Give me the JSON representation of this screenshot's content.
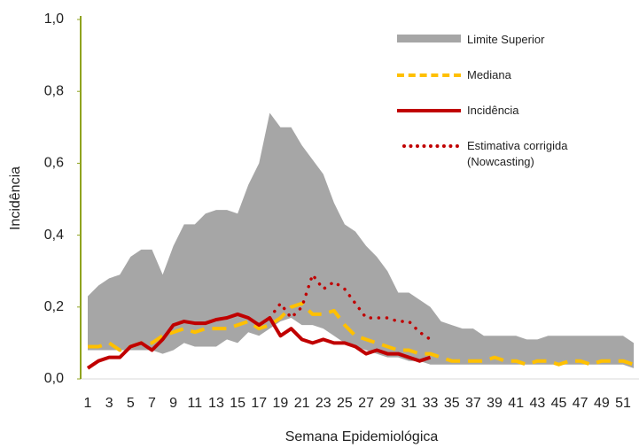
{
  "chart_data": {
    "type": "line",
    "x_label": "Semana Epidemiológica",
    "y_label": "Incidência",
    "categories": [
      1,
      null,
      3,
      null,
      5,
      null,
      7,
      null,
      9,
      null,
      11,
      null,
      13,
      null,
      15,
      null,
      17,
      null,
      19,
      null,
      21,
      null,
      23,
      null,
      25,
      null,
      27,
      null,
      29,
      null,
      31,
      null,
      33,
      null,
      35,
      null,
      37,
      null,
      39,
      null,
      41,
      null,
      43,
      null,
      45,
      null,
      47,
      null,
      49,
      null,
      51,
      null
    ],
    "ylim": [
      0,
      1
    ],
    "yticks": [
      {
        "value": 0,
        "label": "0,0"
      },
      {
        "value": 0.2,
        "label": "0,2"
      },
      {
        "value": 0.4,
        "label": "0,4"
      },
      {
        "value": 0.6,
        "label": "0,6"
      },
      {
        "value": 0.8,
        "label": "0,8"
      },
      {
        "value": 1,
        "label": "1,0"
      }
    ],
    "series": [
      {
        "name": "Limite Superior",
        "color": "#a6a6a6",
        "style": "band",
        "values": [
          0.23,
          0.26,
          0.28,
          0.29,
          0.34,
          0.36,
          0.36,
          0.29,
          0.37,
          0.43,
          0.43,
          0.46,
          0.47,
          0.47,
          0.46,
          0.54,
          0.6,
          0.74,
          0.7,
          0.7,
          0.65,
          0.61,
          0.57,
          0.49,
          0.43,
          0.41,
          0.37,
          0.34,
          0.3,
          0.24,
          0.24,
          0.22,
          0.2,
          0.16,
          0.15,
          0.14,
          0.14,
          0.12,
          0.12,
          0.12,
          0.12,
          0.11,
          0.11,
          0.12,
          0.12,
          0.12,
          0.12,
          0.12,
          0.12,
          0.12,
          0.12,
          0.1
        ],
        "lower": [
          0.08,
          0.08,
          0.08,
          0.08,
          0.08,
          0.08,
          0.08,
          0.07,
          0.08,
          0.1,
          0.09,
          0.09,
          0.09,
          0.11,
          0.1,
          0.13,
          0.12,
          0.14,
          0.16,
          0.17,
          0.15,
          0.15,
          0.14,
          0.12,
          0.1,
          0.09,
          0.08,
          0.07,
          0.06,
          0.06,
          0.05,
          0.05,
          0.04,
          0.04,
          0.04,
          0.04,
          0.04,
          0.04,
          0.04,
          0.04,
          0.04,
          0.04,
          0.04,
          0.04,
          0.04,
          0.04,
          0.04,
          0.04,
          0.04,
          0.04,
          0.04,
          0.03
        ]
      },
      {
        "name": "Mediana",
        "color": "#ffc000",
        "style": "dashed",
        "values": [
          0.09,
          0.09,
          0.1,
          0.08,
          0.09,
          0.1,
          0.1,
          0.12,
          0.13,
          0.14,
          0.13,
          0.14,
          0.14,
          0.14,
          0.15,
          0.16,
          0.14,
          0.15,
          0.17,
          0.2,
          0.21,
          0.18,
          0.18,
          0.19,
          0.15,
          0.12,
          0.11,
          0.1,
          0.09,
          0.08,
          0.08,
          0.07,
          0.07,
          0.06,
          0.05,
          0.05,
          0.05,
          0.05,
          0.06,
          0.05,
          0.05,
          0.04,
          0.05,
          0.05,
          0.04,
          0.05,
          0.05,
          0.04,
          0.05,
          0.05,
          0.05,
          0.04
        ]
      },
      {
        "name": "Incidência",
        "color": "#c00000",
        "style": "solid",
        "values": [
          0.03,
          0.05,
          0.06,
          0.06,
          0.09,
          0.1,
          0.08,
          0.11,
          0.15,
          0.16,
          0.155,
          0.155,
          0.165,
          0.17,
          0.18,
          0.17,
          0.15,
          0.17,
          0.12,
          0.14,
          0.11,
          0.1,
          0.11,
          0.1,
          0.1,
          0.09,
          0.07,
          0.08,
          0.07,
          0.07,
          0.06,
          0.05,
          0.06,
          null,
          null,
          null,
          null,
          null,
          null,
          null,
          null,
          null,
          null,
          null,
          null,
          null,
          null,
          null,
          null,
          null,
          null,
          null
        ]
      },
      {
        "name": "Estimativa corrigida (Nowcasting)",
        "color": "#c00000",
        "style": "dotted",
        "values": [
          null,
          null,
          null,
          null,
          null,
          null,
          null,
          null,
          null,
          null,
          null,
          null,
          null,
          null,
          null,
          null,
          null,
          0.17,
          0.21,
          0.17,
          0.2,
          0.29,
          0.25,
          0.27,
          0.25,
          0.21,
          0.17,
          0.17,
          0.17,
          0.16,
          0.16,
          0.13,
          0.11,
          null,
          null,
          null,
          null,
          null,
          null,
          null,
          null,
          null,
          null,
          null,
          null,
          null,
          null,
          null,
          null,
          null,
          null,
          null
        ]
      }
    ]
  }
}
